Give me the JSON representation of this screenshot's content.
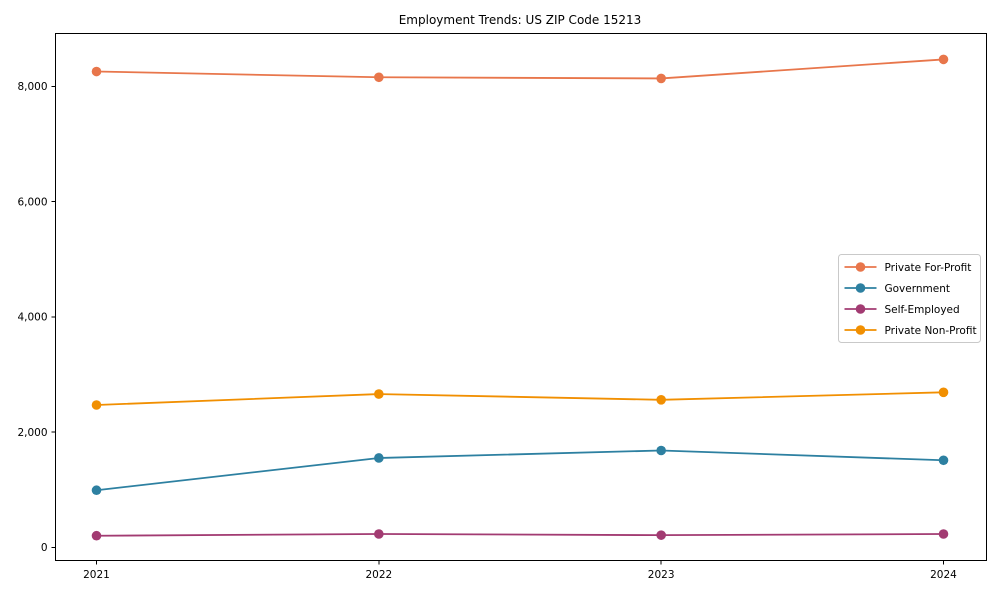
{
  "figure": {
    "title": "Employment Trends: US ZIP Code 15213"
  },
  "chart_data": {
    "type": "line",
    "title": "Employment Trends: US ZIP Code 15213",
    "xlabel": "",
    "ylabel": "",
    "grid": false,
    "legend_position": "center-right",
    "x": [
      2021,
      2022,
      2023,
      2024
    ],
    "x_tick_labels": [
      "2021",
      "2022",
      "2023",
      "2024"
    ],
    "y_ticks": [
      0,
      2000,
      4000,
      6000,
      8000
    ],
    "y_tick_labels": [
      "0",
      "2,000",
      "4,000",
      "6,000",
      "8,000"
    ],
    "ylim": [
      -230,
      8920
    ],
    "marker": "circle",
    "series": [
      {
        "name": "Private For-Profit",
        "color": "#e8764b",
        "values": [
          8260,
          8160,
          8140,
          8470
        ]
      },
      {
        "name": "Government",
        "color": "#2d80a1",
        "values": [
          990,
          1550,
          1680,
          1510
        ]
      },
      {
        "name": "Self-Employed",
        "color": "#a23b72",
        "values": [
          200,
          230,
          210,
          230
        ]
      },
      {
        "name": "Private Non-Profit",
        "color": "#f18f01",
        "values": [
          2470,
          2660,
          2560,
          2690
        ]
      }
    ],
    "legend_border_color": "#c9c9c9",
    "axis_color": "#000000"
  }
}
